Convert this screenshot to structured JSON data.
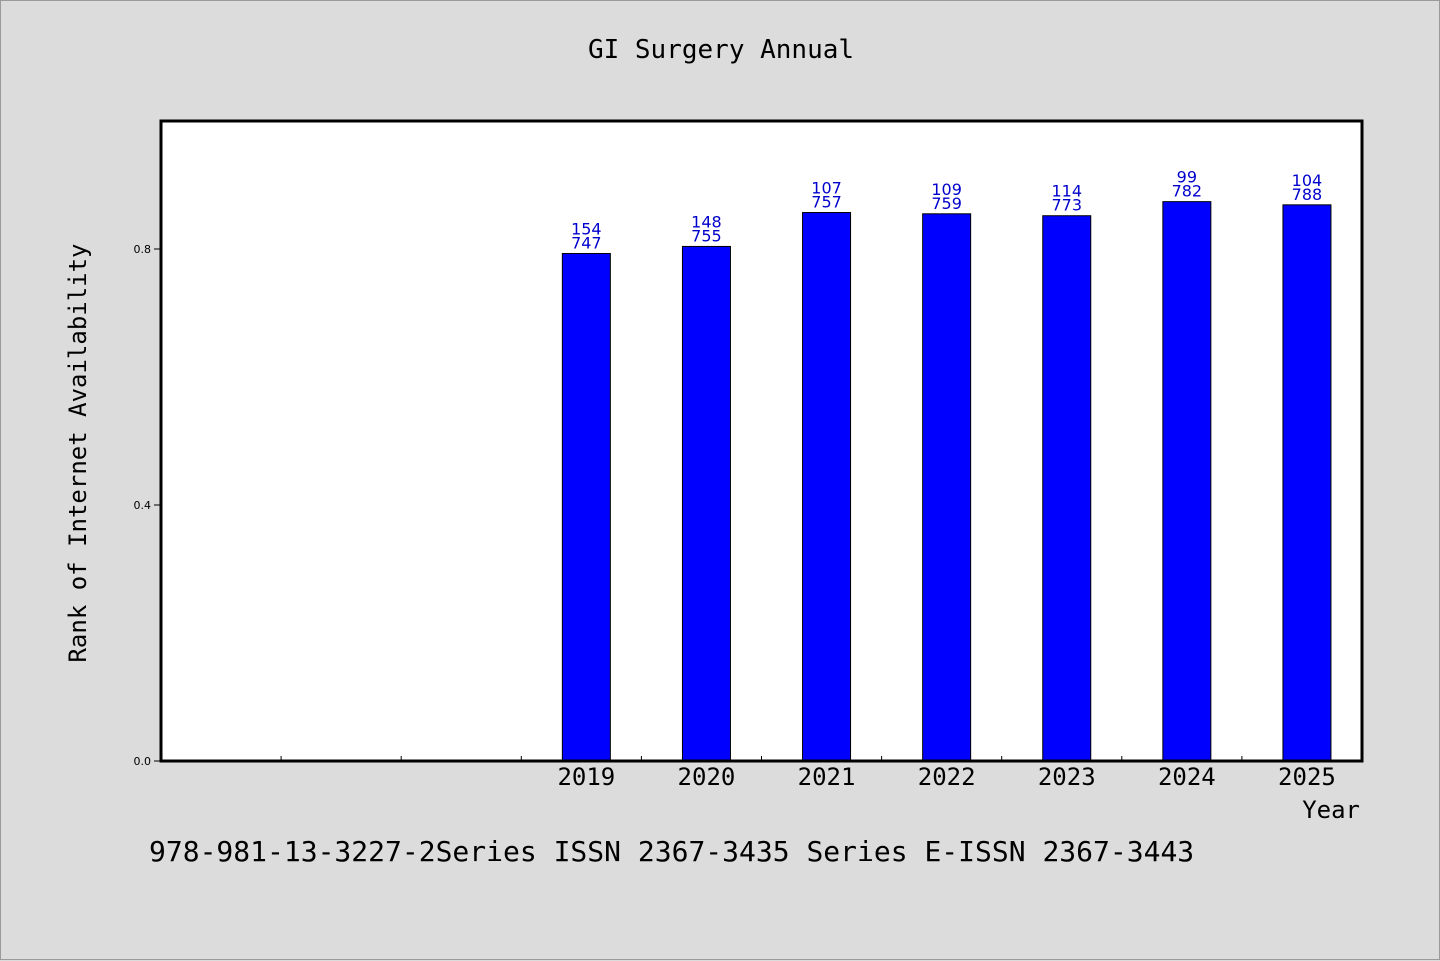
{
  "chart_data": {
    "type": "bar",
    "title": "GI Surgery Annual",
    "xlabel": "Year",
    "ylabel": "Rank of Internet Availability",
    "categories": [
      "",
      "",
      "",
      "2019",
      "2020",
      "2021",
      "2022",
      "2023",
      "2024",
      "2025"
    ],
    "values": [
      null,
      null,
      null,
      0.793,
      0.804,
      0.857,
      0.855,
      0.852,
      0.874,
      0.869
    ],
    "labels": [
      null,
      null,
      null,
      [
        "154",
        "747"
      ],
      [
        "148",
        "755"
      ],
      [
        "107",
        "757"
      ],
      [
        "109",
        "759"
      ],
      [
        "114",
        "773"
      ],
      [
        "99",
        "782"
      ],
      [
        "104",
        "788"
      ]
    ],
    "ylim": [
      0,
      1.0
    ],
    "yticks": [
      0.0,
      0.4,
      0.8
    ],
    "ytick_labels": [
      "0.0",
      "0.4",
      "0.8"
    ],
    "grid": false,
    "bar_color": "#0000ff",
    "label_color": "#0000cc",
    "plot_background": "#ffffff",
    "page_background": "#dcdcdc"
  },
  "footer": {
    "text": "978-981-13-3227-2Series ISSN 2367-3435 Series E-ISSN 2367-3443"
  }
}
